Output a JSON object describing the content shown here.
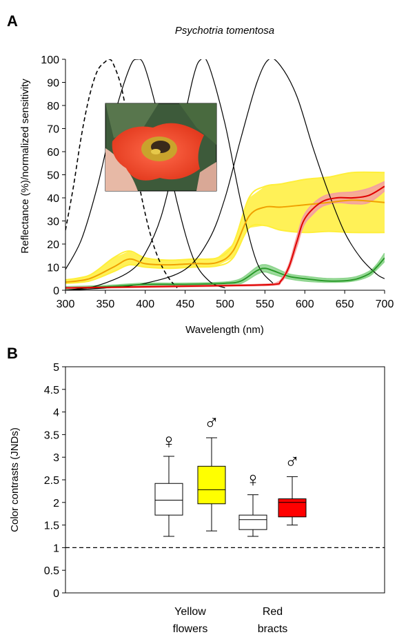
{
  "chart_data": [
    {
      "panel": "A",
      "type": "line",
      "title": "Psychotria tomentosa",
      "xlabel": "Wavelength (nm)",
      "ylabel": "Reflectance (%)/normalized sensitivity",
      "xlim": [
        300,
        700
      ],
      "ylim": [
        0,
        100
      ],
      "xticks": [
        "300",
        "350",
        "400",
        "450",
        "500",
        "550",
        "600",
        "650",
        "700"
      ],
      "yticks": [
        "0",
        "10",
        "20",
        "30",
        "40",
        "50",
        "60",
        "70",
        "80",
        "90",
        "100"
      ],
      "grid": false,
      "inset": "photo",
      "sensitivity_curves": [
        {
          "style": "dashed",
          "color": "#000000",
          "peak": 355,
          "x": [
            300,
            310,
            320,
            330,
            340,
            350,
            355,
            360,
            370,
            380,
            390,
            400,
            410,
            420,
            430,
            440
          ],
          "y": [
            26,
            45,
            67,
            84,
            95,
            99,
            100,
            98,
            88,
            70,
            50,
            33,
            20,
            11,
            5,
            1
          ]
        },
        {
          "style": "solid",
          "color": "#000000",
          "peak": 390,
          "x": [
            300,
            320,
            340,
            360,
            380,
            390,
            400,
            420,
            440,
            460,
            480,
            500
          ],
          "y": [
            9,
            22,
            45,
            74,
            96,
            100,
            96,
            70,
            38,
            14,
            4,
            1
          ]
        },
        {
          "style": "solid",
          "color": "#000000",
          "peak": 470,
          "x": [
            300,
            340,
            380,
            400,
            420,
            440,
            460,
            470,
            480,
            500,
            520,
            540,
            560
          ],
          "y": [
            0,
            2,
            8,
            16,
            32,
            60,
            92,
            100,
            97,
            72,
            38,
            12,
            3
          ]
        },
        {
          "style": "solid",
          "color": "#000000",
          "peak": 555,
          "x": [
            300,
            350,
            400,
            450,
            480,
            500,
            520,
            540,
            555,
            570,
            590,
            610,
            630,
            650,
            670,
            690,
            700
          ],
          "y": [
            0,
            1,
            3,
            9,
            22,
            40,
            66,
            90,
            100,
            97,
            84,
            62,
            42,
            25,
            14,
            7,
            5
          ]
        }
      ],
      "reflectance_series": [
        {
          "color": "#f0a000",
          "band_color": "#ffef3a",
          "x": [
            300,
            330,
            360,
            380,
            400,
            430,
            460,
            490,
            510,
            530,
            550,
            570,
            600,
            630,
            660,
            700
          ],
          "y": [
            3.5,
            5,
            10,
            13.5,
            11.5,
            11,
            11.5,
            12,
            17,
            32,
            36,
            36,
            37,
            38,
            39,
            38
          ],
          "lower": [
            3,
            4,
            8,
            11,
            10,
            9.5,
            10,
            10.5,
            14,
            27,
            28,
            26,
            25,
            25.5,
            25,
            25
          ],
          "upper": [
            4.5,
            6.5,
            14,
            17,
            14,
            13,
            13.5,
            14,
            20,
            40,
            45,
            46,
            48,
            49,
            51,
            51
          ]
        },
        {
          "color": "#2a9a2a",
          "band_color": "#8ed58e",
          "x": [
            300,
            350,
            400,
            450,
            500,
            520,
            540,
            550,
            560,
            580,
            600,
            630,
            660,
            680,
            690,
            700
          ],
          "y": [
            1,
            1.5,
            2.5,
            2.5,
            3,
            4,
            8.5,
            9.5,
            8.5,
            6,
            5,
            4,
            4.5,
            7,
            10,
            14
          ],
          "lower": [
            0.5,
            1,
            2,
            2,
            2.5,
            3,
            7,
            8,
            7,
            5,
            4,
            3.5,
            4,
            6,
            9,
            12.5
          ],
          "upper": [
            1.5,
            2,
            3,
            3,
            3.5,
            5,
            10,
            11,
            10,
            7,
            6,
            5,
            5.5,
            8,
            11,
            16
          ]
        },
        {
          "color": "#e00000",
          "band_color": "#f4a0a0",
          "x": [
            300,
            400,
            500,
            560,
            570,
            580,
            590,
            600,
            620,
            640,
            660,
            680,
            700
          ],
          "y": [
            1,
            1.5,
            2,
            2.5,
            4,
            10,
            21,
            31,
            38,
            40,
            40,
            41,
            45
          ],
          "lower": [
            0.8,
            1.3,
            1.8,
            2.2,
            3.5,
            9,
            19,
            29,
            36,
            38,
            37.5,
            38,
            43
          ],
          "upper": [
            1.2,
            1.7,
            2.2,
            2.8,
            4.5,
            11,
            23,
            33,
            40,
            42,
            42.5,
            44,
            47
          ]
        }
      ]
    },
    {
      "panel": "B",
      "type": "box",
      "ylabel": "Color contrasts (JNDs)",
      "ylim": [
        0,
        5
      ],
      "yticks": [
        "0",
        "0.5",
        "1",
        "1.5",
        "2",
        "2.5",
        "3",
        "3.5",
        "4",
        "4.5",
        "5"
      ],
      "reference_line": {
        "y": 1,
        "style": "dashed"
      },
      "groups": [
        "Yellow flowers",
        "Red bracts"
      ],
      "group_label_lines": [
        [
          "Yellow",
          "flowers"
        ],
        [
          "Red",
          "bracts"
        ]
      ],
      "boxes": [
        {
          "group": "Yellow flowers",
          "sex": "♀",
          "fill": "#ffffff",
          "min": 1.25,
          "q1": 1.72,
          "median": 2.05,
          "q3": 2.42,
          "max": 3.02
        },
        {
          "group": "Yellow flowers",
          "sex": "♂",
          "fill": "#ffff00",
          "min": 1.37,
          "q1": 1.97,
          "median": 2.28,
          "q3": 2.8,
          "max": 3.43
        },
        {
          "group": "Red bracts",
          "sex": "♀",
          "fill": "#ffffff",
          "min": 1.25,
          "q1": 1.4,
          "median": 1.62,
          "q3": 1.72,
          "max": 2.17
        },
        {
          "group": "Red bracts",
          "sex": "♂",
          "fill": "#ff0000",
          "min": 1.5,
          "q1": 1.68,
          "median": 2.0,
          "q3": 2.08,
          "max": 2.57
        }
      ]
    }
  ]
}
